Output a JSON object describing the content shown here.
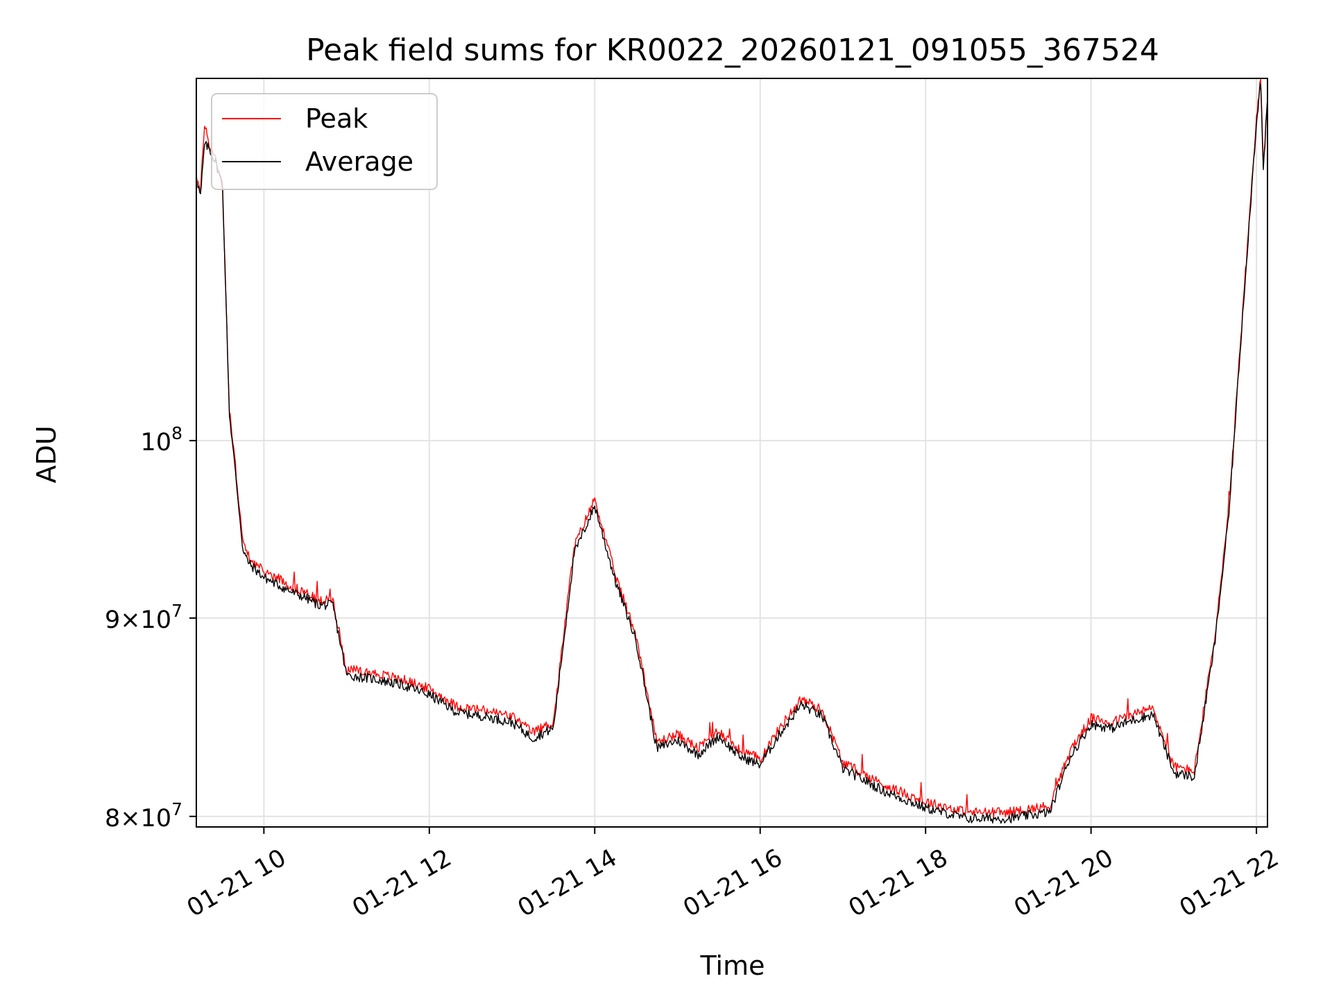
{
  "chart_data": {
    "type": "line",
    "title": "Peak field sums for KR0022_20260121_091055_367524",
    "xlabel": "Time",
    "ylabel": "ADU",
    "y_scale": "log",
    "grid": true,
    "legend_position": "upper-left",
    "x_range": [
      "01-21 09:11",
      "01-21 22:08"
    ],
    "ylim": [
      79500000,
      124000000
    ],
    "x_ticks": [
      "01-21 10",
      "01-21 12",
      "01-21 14",
      "01-21 16",
      "01-21 18",
      "01-21 20",
      "01-21 22"
    ],
    "y_ticks": [
      {
        "value": 80000000,
        "mantissa": "8",
        "base": "10",
        "exponent": "7"
      },
      {
        "value": 90000000,
        "mantissa": "9",
        "base": "10",
        "exponent": "7"
      },
      {
        "value": 100000000,
        "mantissa": "",
        "base": "10",
        "exponent": "8"
      }
    ],
    "series": [
      {
        "name": "Peak",
        "color": "#ff0000",
        "x": [
          "01-21 09:11",
          "01-21 09:14",
          "01-21 09:17",
          "01-21 09:20",
          "01-21 09:25",
          "01-21 09:30",
          "01-21 09:35",
          "01-21 09:40",
          "01-21 09:45",
          "01-21 09:50",
          "01-21 10:00",
          "01-21 10:10",
          "01-21 10:20",
          "01-21 10:30",
          "01-21 10:40",
          "01-21 10:50",
          "01-21 11:00",
          "01-21 11:10",
          "01-21 11:20",
          "01-21 11:40",
          "01-21 12:00",
          "01-21 12:20",
          "01-21 12:40",
          "01-21 13:00",
          "01-21 13:15",
          "01-21 13:30",
          "01-21 13:45",
          "01-21 14:00",
          "01-21 14:15",
          "01-21 14:30",
          "01-21 14:45",
          "01-21 15:00",
          "01-21 15:15",
          "01-21 15:30",
          "01-21 15:45",
          "01-21 16:00",
          "01-21 16:15",
          "01-21 16:30",
          "01-21 16:45",
          "01-21 17:00",
          "01-21 17:30",
          "01-21 18:00",
          "01-21 18:30",
          "01-21 19:00",
          "01-21 19:30",
          "01-21 19:45",
          "01-21 20:00",
          "01-21 20:15",
          "01-21 20:30",
          "01-21 20:45",
          "01-21 21:00",
          "01-21 21:15",
          "01-21 21:30",
          "01-21 21:40",
          "01-21 21:50",
          "01-21 22:00",
          "01-21 22:03",
          "01-21 22:05",
          "01-21 22:08"
        ],
        "values": [
          117200000,
          115800000,
          120800000,
          119300000,
          118200000,
          116500000,
          101800000,
          98000000,
          94000000,
          93200000,
          92500000,
          92200000,
          91700000,
          91400000,
          90900000,
          91000000,
          87300000,
          87200000,
          87100000,
          86800000,
          86300000,
          85400000,
          85200000,
          84900000,
          84100000,
          84600000,
          93900000,
          96600000,
          92300000,
          89100000,
          83600000,
          84000000,
          83300000,
          84200000,
          83200000,
          82800000,
          84400000,
          85800000,
          85200000,
          82600000,
          81500000,
          80700000,
          80200000,
          80200000,
          80500000,
          83200000,
          84800000,
          84600000,
          85000000,
          85300000,
          82400000,
          82200000,
          89100000,
          96000000,
          108000000,
          121000000,
          124000000,
          117500000,
          122700000
        ]
      },
      {
        "name": "Average",
        "color": "#000000",
        "x": [
          "01-21 09:11",
          "01-21 09:14",
          "01-21 09:17",
          "01-21 09:20",
          "01-21 09:25",
          "01-21 09:30",
          "01-21 09:35",
          "01-21 09:40",
          "01-21 09:45",
          "01-21 09:50",
          "01-21 10:00",
          "01-21 10:10",
          "01-21 10:20",
          "01-21 10:30",
          "01-21 10:40",
          "01-21 10:50",
          "01-21 11:00",
          "01-21 11:10",
          "01-21 11:20",
          "01-21 11:40",
          "01-21 12:00",
          "01-21 12:20",
          "01-21 12:40",
          "01-21 13:00",
          "01-21 13:15",
          "01-21 13:30",
          "01-21 13:45",
          "01-21 14:00",
          "01-21 14:15",
          "01-21 14:30",
          "01-21 14:45",
          "01-21 15:00",
          "01-21 15:15",
          "01-21 15:30",
          "01-21 15:45",
          "01-21 16:00",
          "01-21 16:15",
          "01-21 16:30",
          "01-21 16:45",
          "01-21 17:00",
          "01-21 17:30",
          "01-21 18:00",
          "01-21 18:30",
          "01-21 19:00",
          "01-21 19:30",
          "01-21 19:45",
          "01-21 20:00",
          "01-21 20:15",
          "01-21 20:30",
          "01-21 20:45",
          "01-21 21:00",
          "01-21 21:15",
          "01-21 21:30",
          "01-21 21:40",
          "01-21 21:50",
          "01-21 22:00",
          "01-21 22:03",
          "01-21 22:05",
          "01-21 22:08"
        ],
        "values": [
          117000000,
          115600000,
          119200000,
          119000000,
          118000000,
          116300000,
          101600000,
          97600000,
          93600000,
          92900000,
          92200000,
          91800000,
          91400000,
          91100000,
          90700000,
          90700000,
          87000000,
          86900000,
          86800000,
          86500000,
          86000000,
          85100000,
          84900000,
          84600000,
          83800000,
          84300000,
          93500000,
          96200000,
          92000000,
          88800000,
          83300000,
          83700000,
          83000000,
          83900000,
          82900000,
          82500000,
          84100000,
          85500000,
          84900000,
          82300000,
          81200000,
          80400000,
          79900000,
          79900000,
          80200000,
          82900000,
          84500000,
          84300000,
          84700000,
          85000000,
          82100000,
          81900000,
          88800000,
          95700000,
          107800000,
          120800000,
          123800000,
          117300000,
          122500000
        ]
      }
    ]
  }
}
